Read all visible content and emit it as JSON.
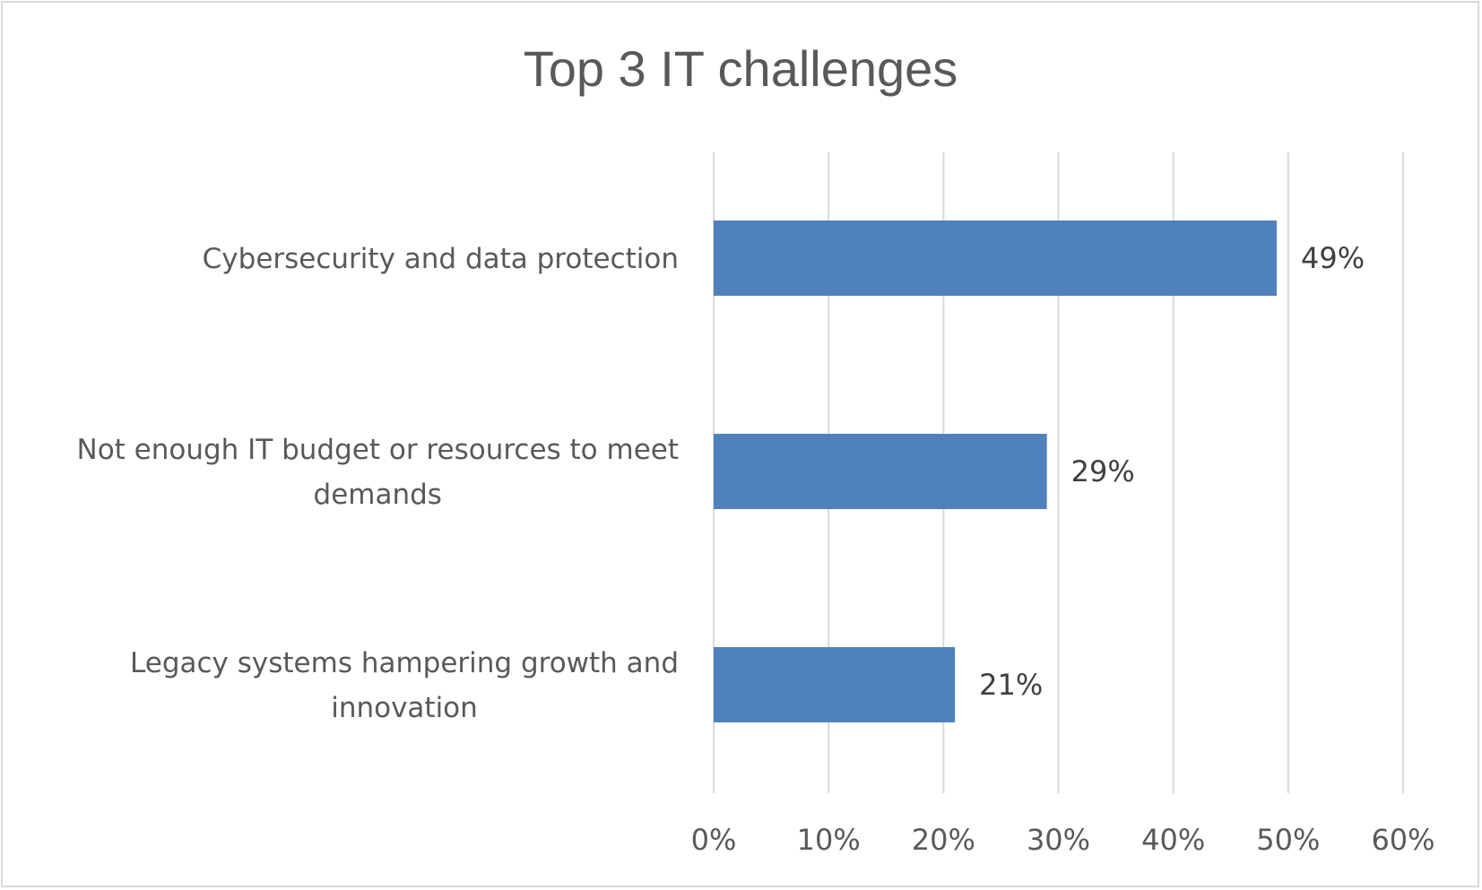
{
  "chart_data": {
    "type": "bar",
    "orientation": "horizontal",
    "title": "Top 3 IT challenges",
    "categories": [
      [
        "Cybersecurity and data protection"
      ],
      [
        "Not enough IT budget or resources to meet",
        "demands"
      ],
      [
        "Legacy systems hampering growth and",
        "innovation"
      ]
    ],
    "values": [
      49,
      29,
      21
    ],
    "data_labels": [
      "49%",
      "29%",
      "21%"
    ],
    "xlim": [
      0,
      60
    ],
    "xticks": [
      0,
      10,
      20,
      30,
      40,
      50,
      60
    ],
    "xtick_labels": [
      "0%",
      "10%",
      "20%",
      "30%",
      "40%",
      "50%",
      "60%"
    ],
    "grid": "vertical",
    "legend": "none",
    "colors": {
      "bar": "#4f81bd",
      "grid": "#d9d9d9",
      "text": "#595959"
    }
  }
}
